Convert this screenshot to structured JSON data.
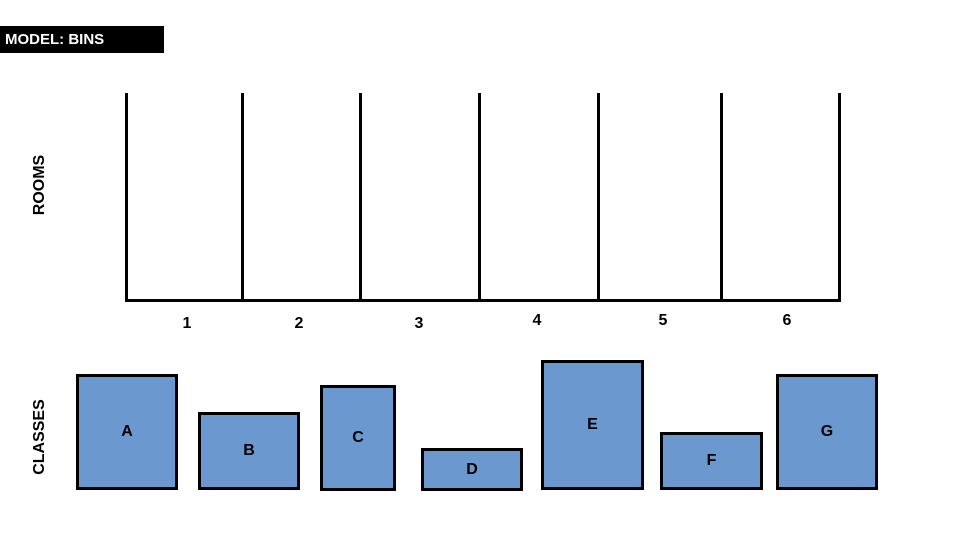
{
  "title": "MODEL: BINS",
  "rooms_label": "ROOMS",
  "classes_label": "CLASSES",
  "bins": [
    "1",
    "2",
    "3",
    "4",
    "5",
    "6"
  ],
  "classes": [
    "A",
    "B",
    "C",
    "D",
    "E",
    "F",
    "G"
  ],
  "colors": {
    "class_fill": "#6a98cf",
    "outline": "#000000",
    "title_bg": "#000000",
    "title_text": "#ffffff"
  }
}
